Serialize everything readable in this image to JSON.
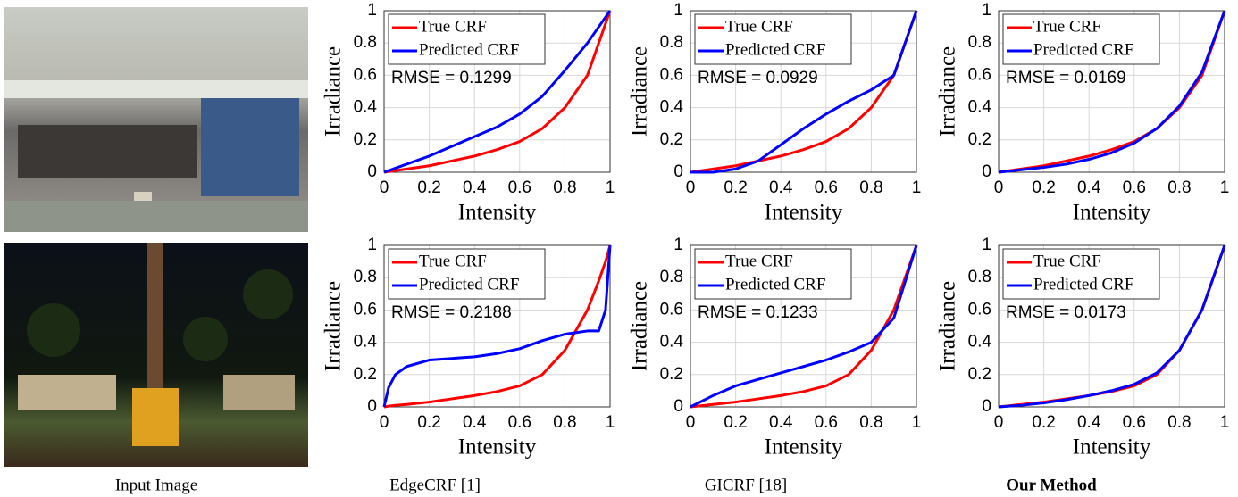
{
  "captions": [
    "Input Image",
    "EdgeCRF [1]",
    "GICRF [18]",
    "Our Method"
  ],
  "chart_data": [
    {
      "type": "line",
      "xlabel": "Intensity",
      "ylabel": "Irradiance",
      "annotation": "RMSE = 0.1299",
      "x": [
        0,
        0.1,
        0.2,
        0.3,
        0.4,
        0.5,
        0.6,
        0.7,
        0.8,
        0.9,
        1
      ],
      "series": [
        {
          "name": "True CRF",
          "color": "#ff0000",
          "values": [
            0,
            0.02,
            0.04,
            0.07,
            0.1,
            0.14,
            0.19,
            0.27,
            0.4,
            0.6,
            1
          ]
        },
        {
          "name": "Predicted CRF",
          "color": "#0000ff",
          "values": [
            0,
            0.05,
            0.1,
            0.16,
            0.22,
            0.28,
            0.36,
            0.47,
            0.63,
            0.8,
            1
          ]
        }
      ],
      "xlim": [
        0,
        1
      ],
      "ylim": [
        0,
        1
      ],
      "xticks": [
        0,
        0.2,
        0.4,
        0.6,
        0.8,
        1
      ],
      "yticks": [
        0,
        0.2,
        0.4,
        0.6,
        0.8,
        1
      ],
      "grid": true,
      "legend": "upper-left"
    },
    {
      "type": "line",
      "xlabel": "Intensity",
      "ylabel": "Irradiance",
      "annotation": "RMSE = 0.0929",
      "x": [
        0,
        0.1,
        0.2,
        0.3,
        0.4,
        0.5,
        0.6,
        0.7,
        0.8,
        0.9,
        1
      ],
      "series": [
        {
          "name": "True CRF",
          "color": "#ff0000",
          "values": [
            0,
            0.02,
            0.04,
            0.07,
            0.1,
            0.14,
            0.19,
            0.27,
            0.4,
            0.6,
            1
          ]
        },
        {
          "name": "Predicted CRF",
          "color": "#0000ff",
          "values": [
            0,
            0,
            0.02,
            0.07,
            0.17,
            0.27,
            0.36,
            0.44,
            0.51,
            0.6,
            1
          ]
        }
      ],
      "xlim": [
        0,
        1
      ],
      "ylim": [
        0,
        1
      ],
      "xticks": [
        0,
        0.2,
        0.4,
        0.6,
        0.8,
        1
      ],
      "yticks": [
        0,
        0.2,
        0.4,
        0.6,
        0.8,
        1
      ],
      "grid": true,
      "legend": "upper-left"
    },
    {
      "type": "line",
      "xlabel": "Intensity",
      "ylabel": "Irradiance",
      "annotation": "RMSE = 0.0169",
      "x": [
        0,
        0.1,
        0.2,
        0.3,
        0.4,
        0.5,
        0.6,
        0.7,
        0.8,
        0.9,
        1
      ],
      "series": [
        {
          "name": "True CRF",
          "color": "#ff0000",
          "values": [
            0,
            0.02,
            0.04,
            0.07,
            0.1,
            0.14,
            0.19,
            0.27,
            0.4,
            0.6,
            1
          ]
        },
        {
          "name": "Predicted CRF",
          "color": "#0000ff",
          "values": [
            0,
            0.015,
            0.03,
            0.05,
            0.08,
            0.12,
            0.18,
            0.27,
            0.41,
            0.62,
            1
          ]
        }
      ],
      "xlim": [
        0,
        1
      ],
      "ylim": [
        0,
        1
      ],
      "xticks": [
        0,
        0.2,
        0.4,
        0.6,
        0.8,
        1
      ],
      "yticks": [
        0,
        0.2,
        0.4,
        0.6,
        0.8,
        1
      ],
      "grid": true,
      "legend": "upper-left"
    },
    {
      "type": "line",
      "xlabel": "Intensity",
      "ylabel": "Irradiance",
      "annotation": "RMSE = 0.2188",
      "x": [
        0,
        0.02,
        0.05,
        0.1,
        0.2,
        0.3,
        0.4,
        0.5,
        0.6,
        0.7,
        0.8,
        0.9,
        0.95,
        0.98,
        1
      ],
      "series": [
        {
          "name": "True CRF",
          "color": "#ff0000",
          "values": [
            0,
            0.005,
            0.01,
            0.015,
            0.03,
            0.05,
            0.07,
            0.095,
            0.13,
            0.2,
            0.35,
            0.6,
            0.78,
            0.9,
            1
          ]
        },
        {
          "name": "Predicted CRF",
          "color": "#0000ff",
          "values": [
            0,
            0.12,
            0.2,
            0.25,
            0.29,
            0.3,
            0.31,
            0.33,
            0.36,
            0.41,
            0.45,
            0.47,
            0.47,
            0.6,
            1
          ]
        }
      ],
      "xlim": [
        0,
        1
      ],
      "ylim": [
        0,
        1
      ],
      "xticks": [
        0,
        0.2,
        0.4,
        0.6,
        0.8,
        1
      ],
      "yticks": [
        0,
        0.2,
        0.4,
        0.6,
        0.8,
        1
      ],
      "grid": true,
      "legend": "upper-left"
    },
    {
      "type": "line",
      "xlabel": "Intensity",
      "ylabel": "Irradiance",
      "annotation": "RMSE = 0.1233",
      "x": [
        0,
        0.1,
        0.2,
        0.3,
        0.4,
        0.5,
        0.6,
        0.7,
        0.8,
        0.9,
        1
      ],
      "series": [
        {
          "name": "True CRF",
          "color": "#ff0000",
          "values": [
            0,
            0.015,
            0.03,
            0.05,
            0.07,
            0.095,
            0.13,
            0.2,
            0.35,
            0.6,
            1
          ]
        },
        {
          "name": "Predicted CRF",
          "color": "#0000ff",
          "values": [
            0,
            0.07,
            0.13,
            0.17,
            0.21,
            0.25,
            0.29,
            0.34,
            0.4,
            0.55,
            1
          ]
        }
      ],
      "xlim": [
        0,
        1
      ],
      "ylim": [
        0,
        1
      ],
      "xticks": [
        0,
        0.2,
        0.4,
        0.6,
        0.8,
        1
      ],
      "yticks": [
        0,
        0.2,
        0.4,
        0.6,
        0.8,
        1
      ],
      "grid": true,
      "legend": "upper-left"
    },
    {
      "type": "line",
      "xlabel": "Intensity",
      "ylabel": "Irradiance",
      "annotation": "RMSE = 0.0173",
      "x": [
        0,
        0.1,
        0.2,
        0.3,
        0.4,
        0.5,
        0.6,
        0.7,
        0.8,
        0.9,
        1
      ],
      "series": [
        {
          "name": "True CRF",
          "color": "#ff0000",
          "values": [
            0,
            0.015,
            0.03,
            0.05,
            0.07,
            0.095,
            0.13,
            0.2,
            0.35,
            0.6,
            1
          ]
        },
        {
          "name": "Predicted CRF",
          "color": "#0000ff",
          "values": [
            0,
            0.01,
            0.025,
            0.045,
            0.07,
            0.1,
            0.14,
            0.21,
            0.35,
            0.6,
            1
          ]
        }
      ],
      "xlim": [
        0,
        1
      ],
      "ylim": [
        0,
        1
      ],
      "xticks": [
        0,
        0.2,
        0.4,
        0.6,
        0.8,
        1
      ],
      "yticks": [
        0,
        0.2,
        0.4,
        0.6,
        0.8,
        1
      ],
      "grid": true,
      "legend": "upper-left"
    }
  ]
}
